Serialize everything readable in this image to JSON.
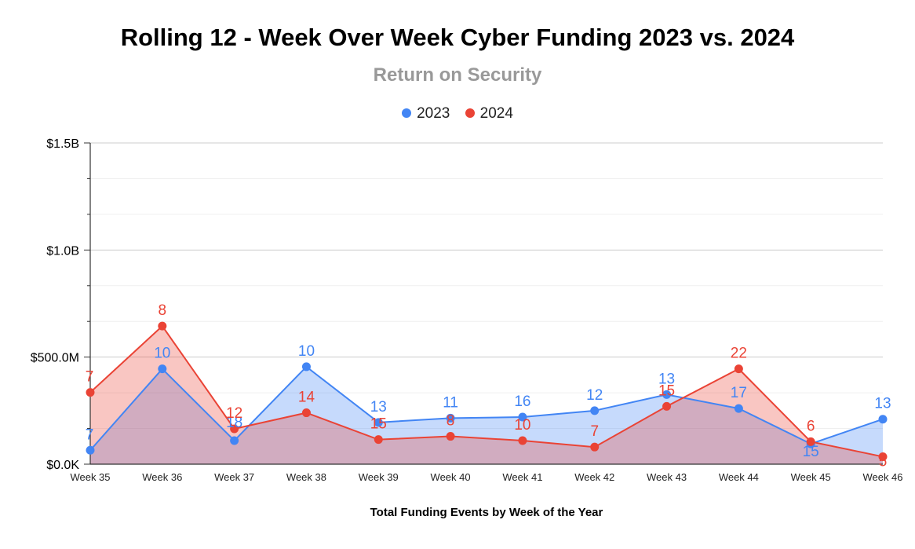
{
  "chart_data": {
    "type": "area",
    "title": "Rolling 12 - Week Over Week Cyber Funding 2023 vs. 2024",
    "subtitle": "Return on Security",
    "xlabel": "Total Funding Events by Week of the Year",
    "ylabel": "",
    "categories": [
      "Week 35",
      "Week 36",
      "Week 37",
      "Week 38",
      "Week 39",
      "Week 40",
      "Week 41",
      "Week 42",
      "Week 43",
      "Week 44",
      "Week 45",
      "Week 46"
    ],
    "yticks": [
      {
        "value": 0,
        "label": "$0.0K"
      },
      {
        "value": 500,
        "label": "$500.0M"
      },
      {
        "value": 1000,
        "label": "$1.0B"
      },
      {
        "value": 1500,
        "label": "$1.5B"
      }
    ],
    "yunit": "millions USD",
    "ylim": [
      0,
      1500
    ],
    "grid": true,
    "legend_position": "top",
    "series": [
      {
        "name": "2023",
        "color": "#4285f4",
        "fill": "#c6dafc",
        "values": [
          65,
          445,
          110,
          455,
          195,
          215,
          220,
          250,
          325,
          260,
          95,
          210
        ],
        "labels": [
          "7",
          "10",
          "18",
          "10",
          "13",
          "11",
          "16",
          "12",
          "13",
          "17",
          "15",
          "13"
        ]
      },
      {
        "name": "2024",
        "color": "#ea4335",
        "fill": "#f6b8b1",
        "values": [
          335,
          645,
          165,
          240,
          115,
          130,
          110,
          80,
          270,
          445,
          105,
          35
        ],
        "labels": [
          "7",
          "8",
          "12",
          "14",
          "15",
          "8",
          "10",
          "7",
          "15",
          "22",
          "6",
          "5"
        ]
      }
    ]
  }
}
